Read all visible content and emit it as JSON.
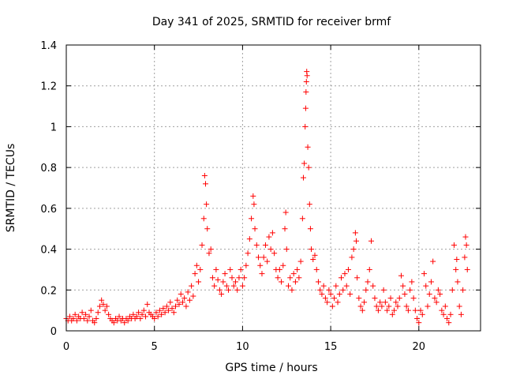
{
  "chart_data": {
    "type": "scatter",
    "title": "Day 341 of 2025, SRMTID for receiver brmf",
    "xlabel": "GPS time / hours",
    "ylabel": "SRMTID / TECUs",
    "xlim": [
      0,
      23.5
    ],
    "ylim": [
      0,
      1.4
    ],
    "xticks": [
      0,
      5,
      10,
      15,
      20
    ],
    "xtick_labels": [
      "0",
      "5",
      "10",
      "15",
      "20"
    ],
    "yticks": [
      0,
      0.2,
      0.4,
      0.6,
      0.8,
      1.0,
      1.2,
      1.4
    ],
    "ytick_labels": [
      "0",
      "0.2",
      "0.4",
      "0.6",
      "0.8",
      "1",
      "1.2",
      "1.4"
    ],
    "grid": true,
    "marker": "plus",
    "color": "#ff0000",
    "series": [
      {
        "name": "SRMTID",
        "points": [
          [
            0.0,
            0.06
          ],
          [
            0.1,
            0.05
          ],
          [
            0.2,
            0.07
          ],
          [
            0.3,
            0.05
          ],
          [
            0.4,
            0.06
          ],
          [
            0.5,
            0.08
          ],
          [
            0.6,
            0.05
          ],
          [
            0.7,
            0.07
          ],
          [
            0.8,
            0.06
          ],
          [
            0.9,
            0.09
          ],
          [
            1.0,
            0.06
          ],
          [
            1.1,
            0.08
          ],
          [
            1.2,
            0.05
          ],
          [
            1.3,
            0.07
          ],
          [
            1.4,
            0.1
          ],
          [
            1.5,
            0.05
          ],
          [
            1.6,
            0.04
          ],
          [
            1.7,
            0.06
          ],
          [
            1.8,
            0.09
          ],
          [
            1.9,
            0.12
          ],
          [
            2.0,
            0.15
          ],
          [
            2.1,
            0.13
          ],
          [
            2.2,
            0.1
          ],
          [
            2.3,
            0.12
          ],
          [
            2.4,
            0.08
          ],
          [
            2.5,
            0.06
          ],
          [
            2.6,
            0.05
          ],
          [
            2.7,
            0.04
          ],
          [
            2.8,
            0.06
          ],
          [
            2.9,
            0.05
          ],
          [
            3.0,
            0.07
          ],
          [
            3.1,
            0.05
          ],
          [
            3.2,
            0.06
          ],
          [
            3.3,
            0.04
          ],
          [
            3.4,
            0.06
          ],
          [
            3.5,
            0.05
          ],
          [
            3.6,
            0.07
          ],
          [
            3.7,
            0.06
          ],
          [
            3.8,
            0.08
          ],
          [
            3.9,
            0.06
          ],
          [
            4.0,
            0.07
          ],
          [
            4.1,
            0.09
          ],
          [
            4.2,
            0.06
          ],
          [
            4.3,
            0.08
          ],
          [
            4.4,
            0.1
          ],
          [
            4.5,
            0.07
          ],
          [
            4.6,
            0.13
          ],
          [
            4.7,
            0.09
          ],
          [
            4.8,
            0.08
          ],
          [
            4.9,
            0.07
          ],
          [
            5.0,
            0.06
          ],
          [
            5.1,
            0.09
          ],
          [
            5.2,
            0.07
          ],
          [
            5.3,
            0.1
          ],
          [
            5.4,
            0.08
          ],
          [
            5.5,
            0.11
          ],
          [
            5.6,
            0.09
          ],
          [
            5.7,
            0.12
          ],
          [
            5.8,
            0.1
          ],
          [
            5.9,
            0.14
          ],
          [
            6.0,
            0.11
          ],
          [
            6.1,
            0.09
          ],
          [
            6.2,
            0.12
          ],
          [
            6.3,
            0.15
          ],
          [
            6.4,
            0.13
          ],
          [
            6.5,
            0.18
          ],
          [
            6.6,
            0.14
          ],
          [
            6.7,
            0.16
          ],
          [
            6.8,
            0.12
          ],
          [
            6.9,
            0.19
          ],
          [
            7.0,
            0.15
          ],
          [
            7.1,
            0.22
          ],
          [
            7.2,
            0.17
          ],
          [
            7.3,
            0.28
          ],
          [
            7.4,
            0.32
          ],
          [
            7.5,
            0.24
          ],
          [
            7.6,
            0.3
          ],
          [
            7.7,
            0.42
          ],
          [
            7.8,
            0.55
          ],
          [
            7.85,
            0.76
          ],
          [
            7.9,
            0.72
          ],
          [
            7.95,
            0.62
          ],
          [
            8.0,
            0.5
          ],
          [
            8.1,
            0.38
          ],
          [
            8.2,
            0.4
          ],
          [
            8.3,
            0.26
          ],
          [
            8.4,
            0.22
          ],
          [
            8.5,
            0.3
          ],
          [
            8.6,
            0.25
          ],
          [
            8.7,
            0.2
          ],
          [
            8.8,
            0.18
          ],
          [
            8.9,
            0.24
          ],
          [
            9.0,
            0.28
          ],
          [
            9.1,
            0.22
          ],
          [
            9.2,
            0.2
          ],
          [
            9.3,
            0.3
          ],
          [
            9.4,
            0.26
          ],
          [
            9.5,
            0.22
          ],
          [
            9.6,
            0.24
          ],
          [
            9.7,
            0.2
          ],
          [
            9.8,
            0.26
          ],
          [
            9.9,
            0.3
          ],
          [
            10.0,
            0.22
          ],
          [
            10.1,
            0.26
          ],
          [
            10.2,
            0.32
          ],
          [
            10.3,
            0.38
          ],
          [
            10.4,
            0.45
          ],
          [
            10.5,
            0.55
          ],
          [
            10.6,
            0.66
          ],
          [
            10.65,
            0.62
          ],
          [
            10.7,
            0.5
          ],
          [
            10.8,
            0.42
          ],
          [
            10.9,
            0.36
          ],
          [
            11.0,
            0.32
          ],
          [
            11.1,
            0.28
          ],
          [
            11.2,
            0.36
          ],
          [
            11.3,
            0.42
          ],
          [
            11.4,
            0.34
          ],
          [
            11.5,
            0.46
          ],
          [
            11.6,
            0.4
          ],
          [
            11.7,
            0.48
          ],
          [
            11.8,
            0.38
          ],
          [
            11.9,
            0.3
          ],
          [
            12.0,
            0.26
          ],
          [
            12.1,
            0.3
          ],
          [
            12.2,
            0.24
          ],
          [
            12.3,
            0.32
          ],
          [
            12.4,
            0.5
          ],
          [
            12.45,
            0.58
          ],
          [
            12.5,
            0.4
          ],
          [
            12.6,
            0.22
          ],
          [
            12.7,
            0.26
          ],
          [
            12.8,
            0.2
          ],
          [
            12.9,
            0.28
          ],
          [
            13.0,
            0.24
          ],
          [
            13.1,
            0.3
          ],
          [
            13.2,
            0.26
          ],
          [
            13.3,
            0.34
          ],
          [
            13.4,
            0.55
          ],
          [
            13.45,
            0.75
          ],
          [
            13.5,
            0.82
          ],
          [
            13.55,
            1.0
          ],
          [
            13.58,
            1.09
          ],
          [
            13.6,
            1.17
          ],
          [
            13.62,
            1.22
          ],
          [
            13.64,
            1.27
          ],
          [
            13.66,
            1.25
          ],
          [
            13.7,
            0.9
          ],
          [
            13.75,
            0.8
          ],
          [
            13.8,
            0.62
          ],
          [
            13.85,
            0.5
          ],
          [
            13.9,
            0.4
          ],
          [
            14.0,
            0.35
          ],
          [
            14.1,
            0.37
          ],
          [
            14.2,
            0.3
          ],
          [
            14.3,
            0.24
          ],
          [
            14.4,
            0.2
          ],
          [
            14.5,
            0.18
          ],
          [
            14.6,
            0.22
          ],
          [
            14.7,
            0.16
          ],
          [
            14.8,
            0.14
          ],
          [
            14.9,
            0.2
          ],
          [
            15.0,
            0.18
          ],
          [
            15.1,
            0.12
          ],
          [
            15.2,
            0.16
          ],
          [
            15.3,
            0.22
          ],
          [
            15.4,
            0.14
          ],
          [
            15.5,
            0.18
          ],
          [
            15.6,
            0.26
          ],
          [
            15.7,
            0.2
          ],
          [
            15.8,
            0.28
          ],
          [
            15.9,
            0.22
          ],
          [
            16.0,
            0.3
          ],
          [
            16.1,
            0.18
          ],
          [
            16.2,
            0.36
          ],
          [
            16.3,
            0.4
          ],
          [
            16.4,
            0.48
          ],
          [
            16.45,
            0.44
          ],
          [
            16.5,
            0.26
          ],
          [
            16.6,
            0.16
          ],
          [
            16.7,
            0.12
          ],
          [
            16.8,
            0.1
          ],
          [
            16.9,
            0.14
          ],
          [
            17.0,
            0.2
          ],
          [
            17.1,
            0.24
          ],
          [
            17.2,
            0.3
          ],
          [
            17.3,
            0.44
          ],
          [
            17.4,
            0.22
          ],
          [
            17.5,
            0.16
          ],
          [
            17.6,
            0.12
          ],
          [
            17.7,
            0.1
          ],
          [
            17.8,
            0.14
          ],
          [
            17.9,
            0.12
          ],
          [
            18.0,
            0.2
          ],
          [
            18.1,
            0.14
          ],
          [
            18.2,
            0.1
          ],
          [
            18.3,
            0.12
          ],
          [
            18.4,
            0.16
          ],
          [
            18.5,
            0.08
          ],
          [
            18.6,
            0.1
          ],
          [
            18.7,
            0.14
          ],
          [
            18.8,
            0.12
          ],
          [
            18.9,
            0.16
          ],
          [
            19.0,
            0.27
          ],
          [
            19.1,
            0.22
          ],
          [
            19.2,
            0.18
          ],
          [
            19.3,
            0.12
          ],
          [
            19.4,
            0.1
          ],
          [
            19.5,
            0.2
          ],
          [
            19.6,
            0.24
          ],
          [
            19.7,
            0.16
          ],
          [
            19.8,
            0.1
          ],
          [
            19.9,
            0.06
          ],
          [
            20.0,
            0.04
          ],
          [
            20.1,
            0.1
          ],
          [
            20.2,
            0.08
          ],
          [
            20.3,
            0.28
          ],
          [
            20.4,
            0.22
          ],
          [
            20.5,
            0.12
          ],
          [
            20.6,
            0.18
          ],
          [
            20.7,
            0.24
          ],
          [
            20.8,
            0.34
          ],
          [
            20.9,
            0.16
          ],
          [
            21.0,
            0.14
          ],
          [
            21.1,
            0.2
          ],
          [
            21.2,
            0.18
          ],
          [
            21.3,
            0.1
          ],
          [
            21.4,
            0.08
          ],
          [
            21.5,
            0.12
          ],
          [
            21.6,
            0.06
          ],
          [
            21.7,
            0.04
          ],
          [
            21.8,
            0.08
          ],
          [
            21.9,
            0.2
          ],
          [
            22.0,
            0.42
          ],
          [
            22.1,
            0.3
          ],
          [
            22.15,
            0.35
          ],
          [
            22.2,
            0.24
          ],
          [
            22.3,
            0.12
          ],
          [
            22.4,
            0.08
          ],
          [
            22.5,
            0.2
          ],
          [
            22.6,
            0.36
          ],
          [
            22.65,
            0.46
          ],
          [
            22.7,
            0.42
          ],
          [
            22.75,
            0.3
          ]
        ]
      }
    ]
  }
}
